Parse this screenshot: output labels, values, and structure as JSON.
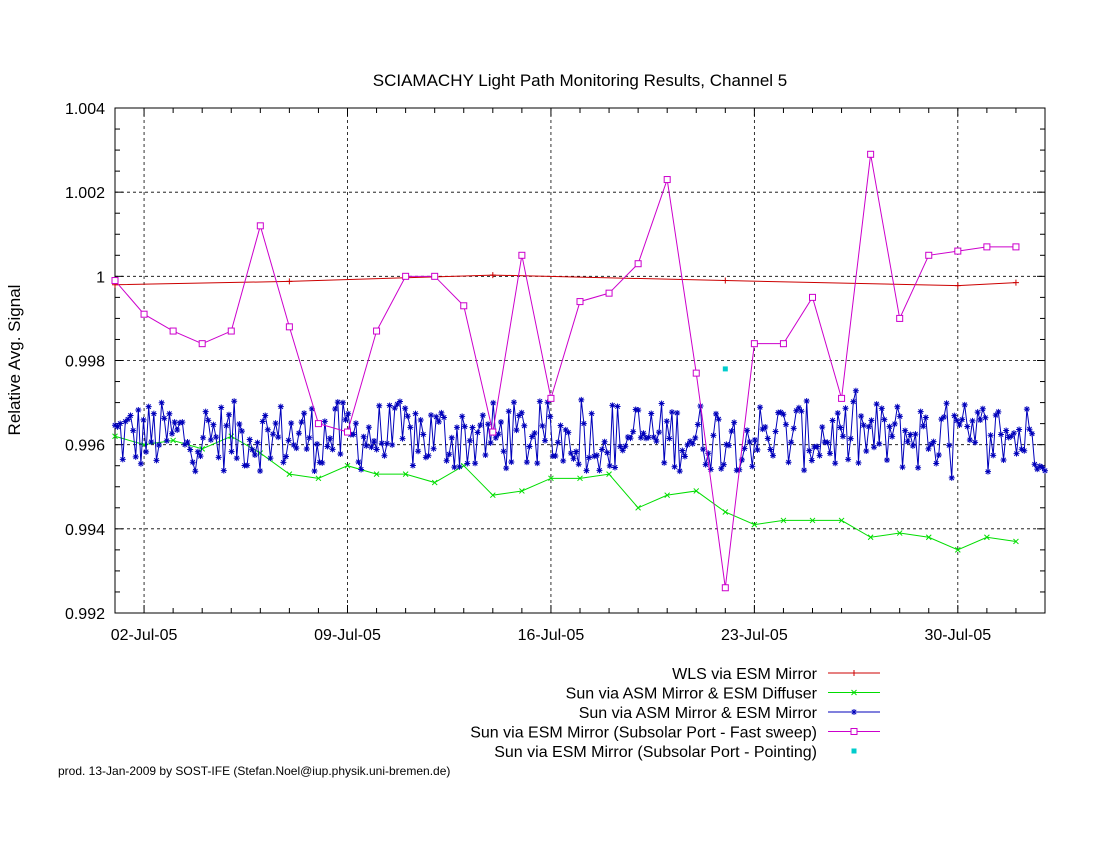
{
  "footer_text": "prod. 13-Jan-2009 by SOST-IFE (Stefan.Noel@iup.physik.uni-bremen.de)",
  "chart_data": {
    "type": "line",
    "title": "SCIAMACHY Light Path Monitoring Results, Channel 5",
    "xlabel": "",
    "ylabel": "Relative Avg. Signal",
    "xlim": [
      "2005-07-01",
      "2005-08-02"
    ],
    "ylim": [
      0.992,
      1.004
    ],
    "x_ticks": [
      "2005-07-02",
      "2005-07-09",
      "2005-07-16",
      "2005-07-23",
      "2005-07-30"
    ],
    "x_tick_labels": [
      "02-Jul-05",
      "09-Jul-05",
      "16-Jul-05",
      "23-Jul-05",
      "30-Jul-05"
    ],
    "y_ticks": [
      0.992,
      0.994,
      0.996,
      0.998,
      1.0,
      1.002,
      1.004
    ],
    "y_tick_labels": [
      "0.992",
      "0.994",
      "0.996",
      "0.998",
      "1",
      "1.002",
      "1.004"
    ],
    "grid": true,
    "legend_position": "below",
    "series": [
      {
        "name": "WLS via ESM Mirror",
        "color": "#cc0000",
        "marker": "plus",
        "x": [
          "2005-07-01",
          "2005-07-07",
          "2005-07-14",
          "2005-07-22",
          "2005-07-30",
          "2005-08-01"
        ],
        "y": [
          0.9998,
          0.99988,
          1.00003,
          0.9999,
          0.99978,
          0.99985
        ]
      },
      {
        "name": "Sun via ASM Mirror & ESM Diffuser",
        "color": "#00dd00",
        "marker": "cross",
        "x": [
          "2005-07-01",
          "2005-07-02",
          "2005-07-03",
          "2005-07-04",
          "2005-07-05",
          "2005-07-06",
          "2005-07-07",
          "2005-07-08",
          "2005-07-09",
          "2005-07-10",
          "2005-07-11",
          "2005-07-12",
          "2005-07-13",
          "2005-07-14",
          "2005-07-15",
          "2005-07-16",
          "2005-07-17",
          "2005-07-18",
          "2005-07-19",
          "2005-07-20",
          "2005-07-21",
          "2005-07-22",
          "2005-07-23",
          "2005-07-24",
          "2005-07-25",
          "2005-07-26",
          "2005-07-27",
          "2005-07-28",
          "2005-07-29",
          "2005-07-30",
          "2005-07-31",
          "2005-08-01"
        ],
        "y": [
          0.9962,
          0.996,
          0.9961,
          0.9959,
          0.9962,
          0.9958,
          0.9953,
          0.9952,
          0.9955,
          0.9953,
          0.9953,
          0.9951,
          0.9955,
          0.9948,
          0.9949,
          0.9952,
          0.9952,
          0.9953,
          0.9945,
          0.9948,
          0.9949,
          0.9944,
          0.9941,
          0.9942,
          0.9942,
          0.9942,
          0.9938,
          0.9939,
          0.9938,
          0.9935,
          0.9938,
          0.9937
        ]
      },
      {
        "name": "Sun via ASM Mirror & ESM Mirror",
        "color": "#0000bb",
        "marker": "star",
        "x": [],
        "y": [],
        "generated_range": [
          0.995,
          0.9974
        ]
      },
      {
        "name": "Sun via ESM Mirror (Subsolar Port - Fast sweep)",
        "color": "#cc00cc",
        "marker": "box",
        "x": [
          "2005-07-01",
          "2005-07-02",
          "2005-07-03",
          "2005-07-04",
          "2005-07-05",
          "2005-07-06",
          "2005-07-07",
          "2005-07-08",
          "2005-07-09",
          "2005-07-10",
          "2005-07-11",
          "2005-07-12",
          "2005-07-13",
          "2005-07-14",
          "2005-07-15",
          "2005-07-16",
          "2005-07-17",
          "2005-07-18",
          "2005-07-19",
          "2005-07-20",
          "2005-07-21",
          "2005-07-22",
          "2005-07-23",
          "2005-07-24",
          "2005-07-25",
          "2005-07-26",
          "2005-07-27",
          "2005-07-28",
          "2005-07-29",
          "2005-07-30",
          "2005-07-31",
          "2005-08-01"
        ],
        "y": [
          0.9999,
          0.9991,
          0.9987,
          0.9984,
          0.9987,
          1.0012,
          0.9988,
          0.9965,
          0.9963,
          0.9987,
          1.0,
          1.0,
          0.9993,
          0.9963,
          1.0005,
          0.9971,
          0.9994,
          0.9996,
          1.0003,
          1.0023,
          0.9977,
          0.9926,
          0.9984,
          0.9984,
          0.9995,
          0.9971,
          1.0029,
          0.999,
          1.0005,
          1.0006,
          1.0007,
          1.0007
        ]
      },
      {
        "name": "Sun via ESM Mirror (Subsolar Port - Pointing)",
        "color": "#00cccc",
        "marker": "dot",
        "x": [
          "2005-07-22"
        ],
        "y": [
          0.9978
        ]
      }
    ]
  }
}
